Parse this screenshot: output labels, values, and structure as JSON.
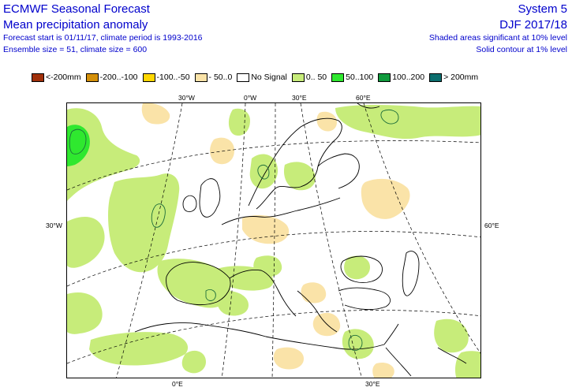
{
  "header": {
    "title_left_1": "ECMWF Seasonal Forecast",
    "title_left_2": "Mean precipitation anomaly",
    "info_1": "Forecast start is 01/11/17, climate period is 1993-2016",
    "info_2": "Ensemble size = 51, climate size = 600",
    "title_right_1": "System 5",
    "title_right_2": "DJF 2017/18",
    "note_1": "Shaded areas significant at 10% level",
    "note_2": "Solid contour at 1% level"
  },
  "legend": [
    {
      "label": "<-200mm",
      "color": "#a0300a"
    },
    {
      "label": "-200..-100",
      "color": "#d4900a"
    },
    {
      "label": "-100..-50",
      "color": "#ffd700"
    },
    {
      "label": "- 50..0",
      "color": "#fae3a8"
    },
    {
      "label": "No Signal",
      "color": "#ffffff"
    },
    {
      "label": "0.. 50",
      "color": "#c7ec7a"
    },
    {
      "label": "50..100",
      "color": "#2fe82f"
    },
    {
      "label": "100..200",
      "color": "#109a3c"
    },
    {
      "label": "> 200mm",
      "color": "#0c6e6e"
    }
  ],
  "grid_labels": {
    "top": [
      "30°W",
      "0°W",
      "30°E",
      "60°E"
    ],
    "left": "30°W",
    "right": "60°E",
    "bottom": [
      "0°E",
      "30°E"
    ]
  }
}
